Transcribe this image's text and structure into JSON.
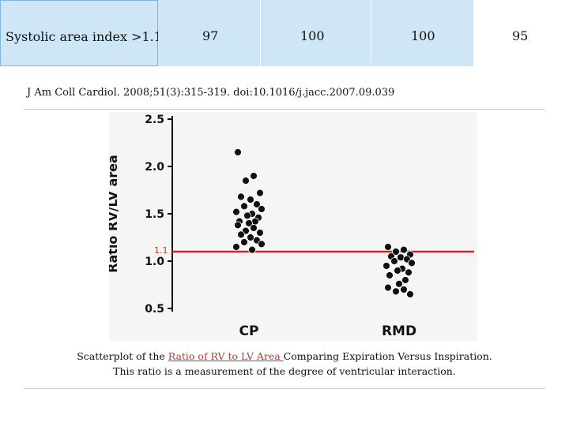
{
  "table": {
    "label": "Systolic area index >1.1",
    "values": [
      "97",
      "100",
      "100",
      "95"
    ]
  },
  "citation": "J Am Coll Cardiol. 2008;51(3):315-319. doi:10.1016/j.jacc.2007.09.039",
  "caption": {
    "prefix": "Scatterplot of the ",
    "link": "Ratio of RV to LV Area ",
    "suffix": "Comparing Expiration Versus Inspiration.",
    "line2": "This ratio is a measurement of the degree of ventricular interaction."
  },
  "colors": {
    "cutoff_line": "#d62020",
    "header_fill": "#cfe6f7",
    "points": "#111111"
  },
  "chart_data": {
    "type": "scatter",
    "title": "",
    "xlabel": "",
    "ylabel": "Ratio RV/LV area",
    "categories": [
      "CP",
      "RMD"
    ],
    "ylim": [
      0.5,
      2.5
    ],
    "yticks": [
      "2.5",
      "2.0",
      "1.5",
      "1.0",
      "0.5"
    ],
    "reference_line": {
      "value": 1.1,
      "label": "1.1"
    },
    "series": [
      {
        "category": "CP",
        "values": [
          2.15,
          1.9,
          1.85,
          1.72,
          1.68,
          1.65,
          1.6,
          1.58,
          1.55,
          1.52,
          1.5,
          1.48,
          1.46,
          1.42,
          1.42,
          1.4,
          1.38,
          1.35,
          1.32,
          1.3,
          1.28,
          1.25,
          1.22,
          1.2,
          1.18,
          1.15,
          1.12
        ]
      },
      {
        "category": "RMD",
        "values": [
          1.15,
          1.12,
          1.1,
          1.07,
          1.05,
          1.04,
          1.02,
          1.0,
          0.98,
          0.95,
          0.92,
          0.9,
          0.88,
          0.85,
          0.8,
          0.76,
          0.72,
          0.7,
          0.68,
          0.65
        ]
      }
    ]
  }
}
